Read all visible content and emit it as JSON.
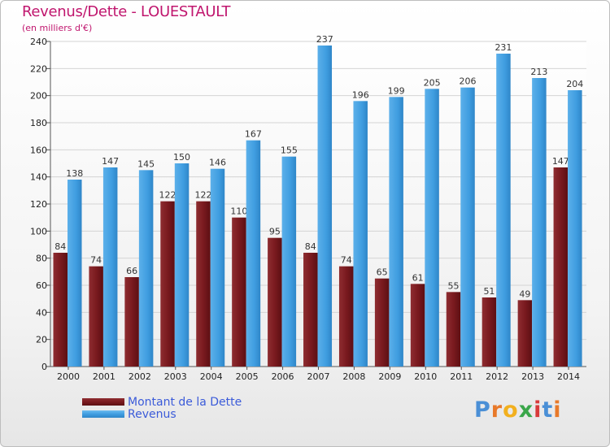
{
  "chart_data": {
    "type": "bar",
    "title": "Revenus/Dette - LOUESTAULT",
    "subtitle": "(en milliers d'€)",
    "categories": [
      "2000",
      "2001",
      "2002",
      "2003",
      "2004",
      "2005",
      "2006",
      "2007",
      "2008",
      "2009",
      "2010",
      "2011",
      "2012",
      "2013",
      "2014"
    ],
    "series": [
      {
        "name": "Montant de la Dette",
        "color": "#7a1a1f",
        "values": [
          84,
          74,
          66,
          122,
          122,
          110,
          95,
          84,
          74,
          65,
          61,
          55,
          51,
          49,
          147
        ]
      },
      {
        "name": "Revenus",
        "color": "#3f9de0",
        "values": [
          138,
          147,
          145,
          150,
          146,
          167,
          155,
          237,
          196,
          199,
          205,
          206,
          231,
          213,
          204
        ]
      }
    ],
    "ylim": [
      0,
      240
    ],
    "yticks": [
      0,
      20,
      40,
      60,
      80,
      100,
      120,
      140,
      160,
      180,
      200,
      220,
      240
    ],
    "grid": true,
    "legend_position": "bottom-left"
  },
  "branding": {
    "logo_text": "Proxiti",
    "logo_colors": [
      "#4a8fd6",
      "#e8792a",
      "#f2b01e",
      "#3aa64a",
      "#d83a3a",
      "#4a8fd6",
      "#e8792a"
    ]
  }
}
